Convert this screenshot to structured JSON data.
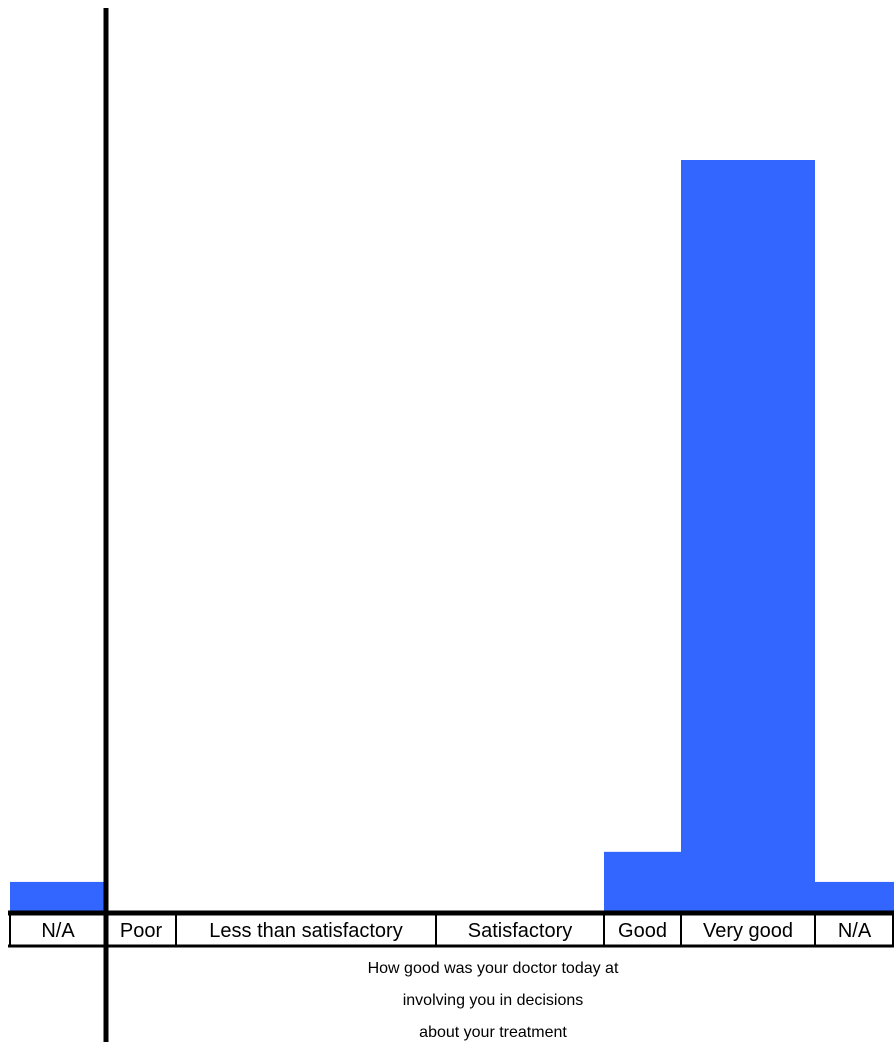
{
  "chart_data": {
    "type": "bar",
    "categories": [
      "N/A",
      "Poor",
      "Less than satisfactory",
      "Satisfactory",
      "Good",
      "Very good",
      "N/A"
    ],
    "values": [
      1,
      0,
      0,
      0,
      2,
      25,
      1
    ],
    "ylim": [
      0,
      25
    ],
    "grid": false,
    "xlabel_lines": [
      "How good was your doctor today at",
      "involving you in decisions",
      "about your treatment"
    ],
    "bar_color": "#3366FF",
    "axis_color": "#000000"
  }
}
